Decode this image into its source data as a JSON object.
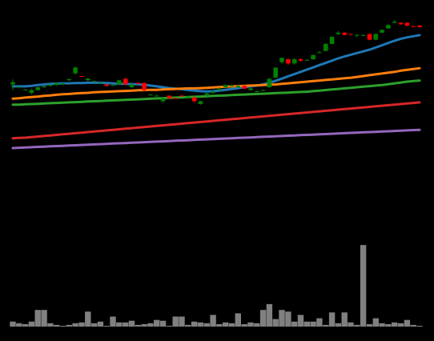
{
  "chart_data": {
    "type": "candlestick",
    "background": "#000000",
    "grid": false,
    "legend": "none",
    "title": "",
    "xlabel": "",
    "ylabel": "",
    "ylim": [
      85,
      165
    ],
    "volume_ylim": [
      0,
      100
    ],
    "colors": {
      "up": "#008000",
      "down": "#ff0000",
      "volume": "#808080",
      "series": [
        "#1f77b4",
        "#ff7f0e",
        "#2ca02c",
        "#d62728",
        "#9467bd"
      ]
    },
    "candles": [
      [
        140.0,
        140.8,
        138.0,
        141.8
      ],
      [
        139.0,
        139.2,
        138.6,
        139.3
      ],
      [
        138.0,
        138.2,
        137.8,
        138.3
      ],
      [
        137.0,
        138.0,
        136.5,
        138.5
      ],
      [
        138.0,
        139.0,
        137.8,
        139.2
      ],
      [
        139.0,
        139.4,
        138.8,
        139.6
      ],
      [
        139.5,
        139.9,
        139.2,
        140.0
      ],
      [
        139.8,
        140.5,
        139.5,
        140.7
      ],
      [
        140.0,
        140.3,
        139.7,
        140.6
      ],
      [
        141.5,
        141.9,
        141.3,
        142.0
      ],
      [
        144.0,
        146.0,
        143.5,
        146.5
      ],
      [
        143.0,
        142.9,
        142.7,
        143.1
      ],
      [
        141.5,
        142.1,
        141.2,
        142.3
      ],
      [
        141.0,
        141.2,
        140.8,
        141.4
      ],
      [
        140.5,
        140.6,
        140.2,
        140.8
      ],
      [
        140.0,
        139.5,
        139.3,
        140.2
      ],
      [
        139.8,
        139.8,
        139.5,
        140.0
      ],
      [
        140.0,
        141.5,
        139.8,
        141.7
      ],
      [
        142.0,
        140.0,
        139.8,
        142.4
      ],
      [
        139.0,
        140.0,
        138.8,
        140.2
      ],
      [
        140.5,
        140.2,
        140.0,
        140.8
      ],
      [
        140.5,
        138.0,
        137.5,
        140.8
      ],
      [
        136.2,
        136.4,
        136.1,
        136.6
      ],
      [
        136.0,
        136.0,
        135.8,
        136.3
      ],
      [
        134.0,
        135.0,
        133.5,
        135.3
      ],
      [
        136.0,
        135.0,
        134.8,
        136.2
      ],
      [
        135.2,
        135.0,
        134.8,
        135.4
      ],
      [
        136.0,
        135.8,
        135.6,
        136.2
      ],
      [
        135.0,
        135.5,
        134.8,
        135.7
      ],
      [
        135.4,
        134.0,
        133.5,
        135.6
      ],
      [
        133.0,
        134.0,
        132.8,
        134.2
      ],
      [
        136.0,
        136.8,
        135.8,
        137.0
      ],
      [
        137.0,
        137.5,
        136.8,
        137.8
      ],
      [
        138.0,
        138.5,
        137.8,
        139.0
      ],
      [
        139.0,
        139.8,
        138.8,
        140.0
      ],
      [
        139.5,
        139.6,
        139.3,
        139.9
      ],
      [
        139.0,
        139.5,
        138.8,
        139.7
      ],
      [
        139.5,
        138.5,
        138.3,
        139.8
      ],
      [
        138.0,
        138.6,
        137.8,
        138.8
      ],
      [
        137.5,
        137.6,
        137.3,
        137.8
      ],
      [
        138.0,
        138.0,
        137.8,
        138.2
      ],
      [
        139.0,
        142.0,
        138.8,
        142.3
      ],
      [
        142.5,
        146.0,
        142.3,
        146.2
      ],
      [
        148.0,
        149.5,
        147.5,
        149.7
      ],
      [
        149.0,
        147.5,
        147.0,
        149.2
      ],
      [
        147.5,
        149.0,
        147.0,
        149.3
      ],
      [
        149.0,
        148.5,
        148.2,
        149.3
      ],
      [
        148.6,
        148.8,
        148.4,
        149.0
      ],
      [
        149.0,
        150.5,
        148.8,
        150.7
      ],
      [
        151.5,
        151.5,
        151.3,
        152.0
      ],
      [
        152.0,
        154.5,
        151.8,
        154.7
      ],
      [
        154.5,
        157.0,
        154.3,
        157.2
      ],
      [
        158.0,
        158.5,
        157.8,
        159.0
      ],
      [
        158.5,
        157.7,
        157.5,
        158.7
      ],
      [
        158.0,
        157.9,
        157.7,
        158.2
      ],
      [
        157.6,
        157.7,
        156.8,
        158.0
      ],
      [
        157.5,
        157.6,
        157.3,
        157.8
      ],
      [
        158.0,
        156.0,
        155.8,
        158.2
      ],
      [
        156.0,
        158.0,
        155.8,
        158.2
      ],
      [
        158.5,
        159.5,
        158.3,
        159.7
      ],
      [
        160.0,
        161.2,
        159.8,
        161.5
      ],
      [
        162.0,
        162.4,
        161.8,
        163.0
      ],
      [
        162.0,
        161.5,
        161.3,
        162.2
      ],
      [
        162.0,
        161.0,
        160.8,
        162.2
      ],
      [
        160.8,
        160.7,
        160.5,
        161.0
      ],
      [
        161.0,
        160.5,
        160.3,
        161.2
      ]
    ],
    "series": [
      {
        "values": [
          139.3,
          139.3,
          139.3,
          139.5,
          139.8,
          140.0,
          140.2,
          140.3,
          140.4,
          140.4,
          140.5,
          140.5,
          140.6,
          140.6,
          140.6,
          140.5,
          140.4,
          140.2,
          140.2,
          140.1,
          140.1,
          139.9,
          139.6,
          139.3,
          139.0,
          138.7,
          138.5,
          138.3,
          138.0,
          137.8,
          137.6,
          137.5,
          137.6,
          137.8,
          138.1,
          138.4,
          138.7,
          139.0,
          139.3,
          139.6,
          140.0,
          140.6,
          141.3,
          142.1,
          142.9,
          143.7,
          144.5,
          145.3,
          146.1,
          146.9,
          147.7,
          148.5,
          149.3,
          150.0,
          150.6,
          151.2,
          151.8,
          152.4,
          153.2,
          154.0,
          154.8,
          155.6,
          156.3,
          156.8,
          157.2,
          157.6
        ]
      },
      {
        "values": [
          134.9,
          135.1,
          135.3,
          135.5,
          135.7,
          135.9,
          136.1,
          136.3,
          136.5,
          136.6,
          136.8,
          136.9,
          137.0,
          137.2,
          137.3,
          137.4,
          137.5,
          137.6,
          137.7,
          137.8,
          137.9,
          138.0,
          138.1,
          138.1,
          138.2,
          138.3,
          138.4,
          138.5,
          138.6,
          138.6,
          138.7,
          138.8,
          138.9,
          139.1,
          139.2,
          139.3,
          139.4,
          139.5,
          139.6,
          139.7,
          139.8,
          139.9,
          140.0,
          140.2,
          140.4,
          140.6,
          140.8,
          141.0,
          141.2,
          141.4,
          141.6,
          141.8,
          142.0,
          142.2,
          142.4,
          142.7,
          143.0,
          143.3,
          143.6,
          143.9,
          144.2,
          144.5,
          144.9,
          145.2,
          145.5,
          145.8
        ]
      },
      {
        "values": [
          132.8,
          132.8,
          132.9,
          133.0,
          133.1,
          133.2,
          133.3,
          133.4,
          133.5,
          133.6,
          133.7,
          133.8,
          133.9,
          134.0,
          134.1,
          134.2,
          134.3,
          134.4,
          134.5,
          134.6,
          134.7,
          134.8,
          134.9,
          135.0,
          135.1,
          135.2,
          135.3,
          135.4,
          135.5,
          135.6,
          135.7,
          135.8,
          135.9,
          136.0,
          136.1,
          136.2,
          136.3,
          136.4,
          136.5,
          136.6,
          136.7,
          136.8,
          136.9,
          137.0,
          137.1,
          137.2,
          137.3,
          137.4,
          137.6,
          137.8,
          138.0,
          138.2,
          138.4,
          138.6,
          138.8,
          139.0,
          139.2,
          139.4,
          139.6,
          139.8,
          140.1,
          140.4,
          140.7,
          141.0,
          141.2,
          141.4
        ]
      },
      {
        "values": [
          120.8,
          120.9,
          121.0,
          121.2,
          121.4,
          121.6,
          121.8,
          122.0,
          122.2,
          122.4,
          122.6,
          122.8,
          123.0,
          123.2,
          123.4,
          123.6,
          123.8,
          124.0,
          124.2,
          124.4,
          124.6,
          124.8,
          125.0,
          125.2,
          125.4,
          125.6,
          125.8,
          126.0,
          126.2,
          126.4,
          126.6,
          126.8,
          127.0,
          127.2,
          127.4,
          127.6,
          127.8,
          128.0,
          128.2,
          128.4,
          128.6,
          128.8,
          129.0,
          129.2,
          129.4,
          129.6,
          129.8,
          130.0,
          130.2,
          130.4,
          130.6,
          130.8,
          131.0,
          131.2,
          131.4,
          131.6,
          131.8,
          132.0,
          132.2,
          132.4,
          132.6,
          132.8,
          133.0,
          133.2,
          133.4,
          133.6
        ]
      },
      {
        "values": [
          117.3,
          117.4,
          117.5,
          117.6,
          117.7,
          117.8,
          117.9,
          118.0,
          118.1,
          118.2,
          118.3,
          118.4,
          118.5,
          118.6,
          118.7,
          118.8,
          118.9,
          119.0,
          119.1,
          119.2,
          119.3,
          119.4,
          119.5,
          119.6,
          119.7,
          119.8,
          119.9,
          120.0,
          120.1,
          120.2,
          120.3,
          120.4,
          120.5,
          120.6,
          120.7,
          120.8,
          120.9,
          121.0,
          121.1,
          121.2,
          121.3,
          121.4,
          121.5,
          121.6,
          121.7,
          121.8,
          121.9,
          122.0,
          122.1,
          122.2,
          122.3,
          122.4,
          122.5,
          122.6,
          122.7,
          122.8,
          122.9,
          123.0,
          123.1,
          123.2,
          123.3,
          123.4,
          123.5,
          123.6,
          123.7,
          123.8
        ]
      }
    ],
    "volume": [
      6,
      4,
      3,
      6,
      20,
      20,
      4,
      2,
      1,
      2,
      4,
      5,
      18,
      4,
      6,
      1,
      12,
      5,
      5,
      7,
      2,
      3,
      4,
      8,
      7,
      1,
      12,
      12,
      2,
      6,
      5,
      4,
      14,
      3,
      5,
      4,
      16,
      3,
      5,
      4,
      20,
      27,
      9,
      20,
      18,
      6,
      14,
      6,
      6,
      10,
      2,
      17,
      4,
      17,
      5,
      2,
      98,
      3,
      10,
      4,
      3,
      5,
      4,
      8,
      2,
      1
    ]
  }
}
